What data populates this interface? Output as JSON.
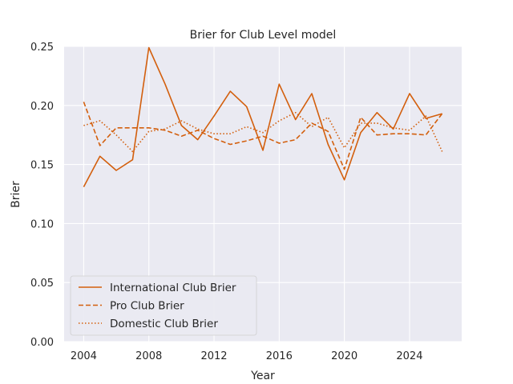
{
  "chart_data": {
    "type": "line",
    "title": "Brier for Club Level model",
    "xlabel": "Year",
    "ylabel": "Brier",
    "xlim": [
      2002.8,
      2027.2
    ],
    "ylim": [
      0.0,
      0.25
    ],
    "xticks": [
      "2004",
      "2008",
      "2012",
      "2016",
      "2020",
      "2024"
    ],
    "yticks": [
      "0.00",
      "0.05",
      "0.10",
      "0.15",
      "0.20",
      "0.25"
    ],
    "grid": true,
    "legend_position": "lower-left",
    "line_color": "#d35f0d",
    "background_color": "#eaeaf2",
    "x": [
      2004,
      2005,
      2006,
      2007,
      2008,
      2009,
      2010,
      2011,
      2012,
      2013,
      2014,
      2015,
      2016,
      2017,
      2018,
      2019,
      2020,
      2021,
      2022,
      2023,
      2024,
      2025,
      2026
    ],
    "series": [
      {
        "name": "International Club Brier",
        "style": "solid",
        "values": [
          0.131,
          0.157,
          0.145,
          0.154,
          0.249,
          0.218,
          0.183,
          0.171,
          0.191,
          0.212,
          0.199,
          0.162,
          0.218,
          0.188,
          0.21,
          0.167,
          0.137,
          0.177,
          0.194,
          0.18,
          0.21,
          0.189,
          0.193
        ]
      },
      {
        "name": "Pro Club Brier",
        "style": "dashed",
        "values": [
          0.203,
          0.166,
          0.181,
          0.181,
          0.181,
          0.179,
          0.174,
          0.179,
          0.172,
          0.167,
          0.17,
          0.174,
          0.168,
          0.171,
          0.185,
          0.178,
          0.146,
          0.19,
          0.175,
          0.176,
          0.176,
          0.175,
          0.193
        ]
      },
      {
        "name": "Domestic Club Brier",
        "style": "dotted",
        "values": [
          0.183,
          0.187,
          0.175,
          0.161,
          0.178,
          0.18,
          0.187,
          0.18,
          0.176,
          0.176,
          0.182,
          0.177,
          0.187,
          0.194,
          0.182,
          0.19,
          0.164,
          0.185,
          0.185,
          0.181,
          0.179,
          0.191,
          0.161
        ]
      }
    ]
  }
}
